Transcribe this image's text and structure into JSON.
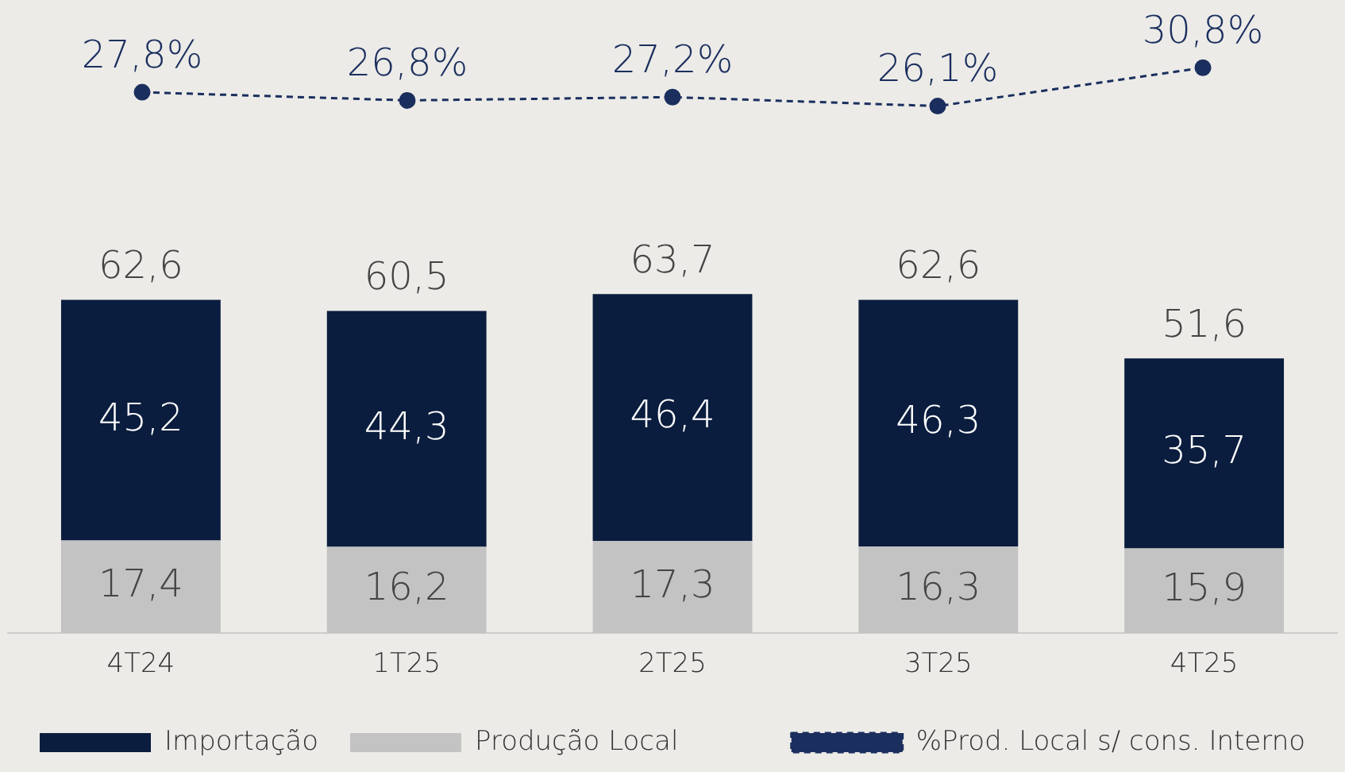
{
  "chart_data": [
    {
      "type": "line",
      "categories": [
        null,
        null,
        null,
        null,
        null
      ],
      "series": [
        {
          "name": "%Prod. Local s/ cons. Interno",
          "color": "#1b2f5e",
          "values": [
            27.8,
            26.8,
            27.2,
            26.1,
            30.8
          ],
          "value_labels": [
            "27,8%",
            "26,8%",
            "27,2%",
            "26,1%",
            "30,8%"
          ]
        }
      ],
      "marker": "circle",
      "line_style": "dashed",
      "legend": "bottom right",
      "tick_labels": false,
      "grid": false
    },
    {
      "type": "bar",
      "stacked": true,
      "categories": [
        "4T24",
        "1T25",
        "2T25",
        "3T25",
        "4T25"
      ],
      "series": [
        {
          "name": "Produção Local",
          "color": "#c3c3c3",
          "values": [
            17.4,
            16.2,
            17.3,
            16.3,
            15.9
          ],
          "value_labels": [
            "17,4",
            "16,2",
            "17,3",
            "16,3",
            "15,9"
          ]
        },
        {
          "name": "Importação",
          "color": "#0b1d3e",
          "values": [
            45.2,
            44.3,
            46.4,
            46.3,
            35.7
          ],
          "value_labels": [
            "45,2",
            "44,3",
            "46,4",
            "46,3",
            "35,7"
          ]
        }
      ],
      "totals": [
        "62,6",
        "60,5",
        "63,7",
        "62,6",
        "51,6"
      ],
      "legend": "bottom left",
      "grid": false,
      "tick_labels": "x"
    }
  ]
}
